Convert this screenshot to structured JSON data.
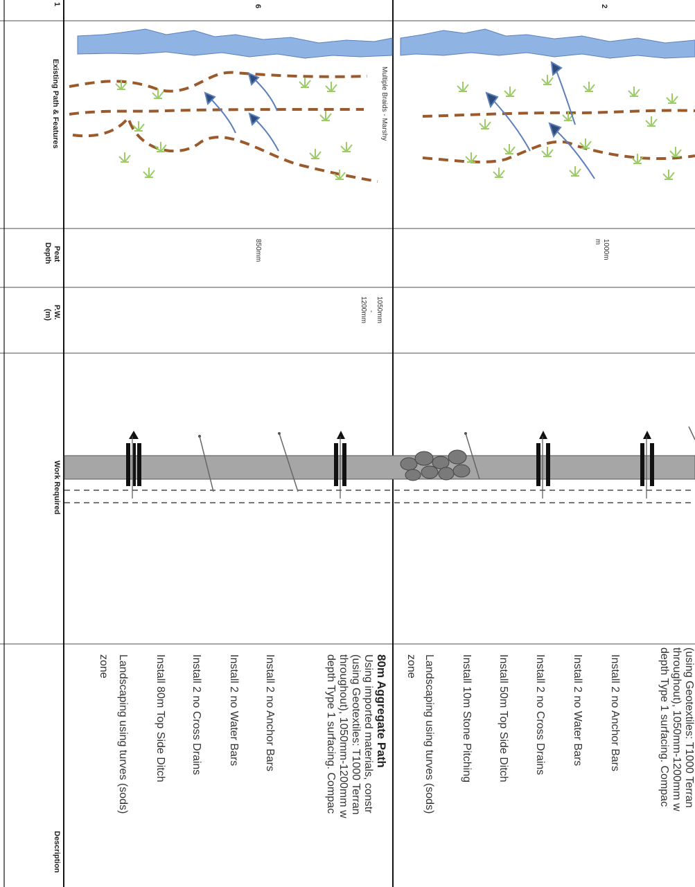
{
  "colors": {
    "river": "#8fb4e3",
    "river_stroke": "#5a7fba",
    "path_dash": "#9b5a2b",
    "plants": "#9ccc65",
    "arrow": "#2f4b7c",
    "path_fill": "#a6a6a6",
    "stone": "#7a7a7a"
  },
  "headers": {
    "existing": "Existing Path & Features",
    "peat_line1": "Peat",
    "peat_line2": "Depth",
    "pw_line1": "P.W.",
    "pw_line2": "(m)",
    "work": "Work Required",
    "description": "Description"
  },
  "section_labels": {
    "left": "6",
    "right": "2",
    "edge": "1"
  },
  "left_section": {
    "feature_note": "Multiple Braids - Marshy",
    "peat_depth": "850mm",
    "pw_line1": "1050mm",
    "pw_line2": "-",
    "pw_line3": "1200mm",
    "desc_title": "80m Aggregate Path",
    "desc_lines": [
      "Using imported materials, constr",
      "(using Geotextiles: T1000 Terran",
      "throughout), 1050mm-1200mm w",
      "depth Type 1 surfacing. Compac"
    ],
    "items": [
      "Install 2 no Anchor Bars",
      "Install 2 no Water Bars",
      "Install 2 no Cross Drains",
      "Install 80m Top Side Ditch",
      "Landscaping using turves (sods)",
      "zone"
    ]
  },
  "right_section": {
    "peat_depth_line1": "1000m",
    "peat_depth_line2": "m",
    "desc_lines": [
      "(using Geotextiles: T1000 Terran",
      "throughout), 1050mm-1200mm w",
      "depth Type 1 surfacing. Compac"
    ],
    "items": [
      "Install 2 no Anchor Bars",
      "Install 2 no Water Bars",
      "Install 2 no Cross Drains",
      "Install 50m Top Side Ditch",
      "Install 10m Stone Pitching",
      "Landscaping using turves (sods)",
      "zone"
    ]
  }
}
